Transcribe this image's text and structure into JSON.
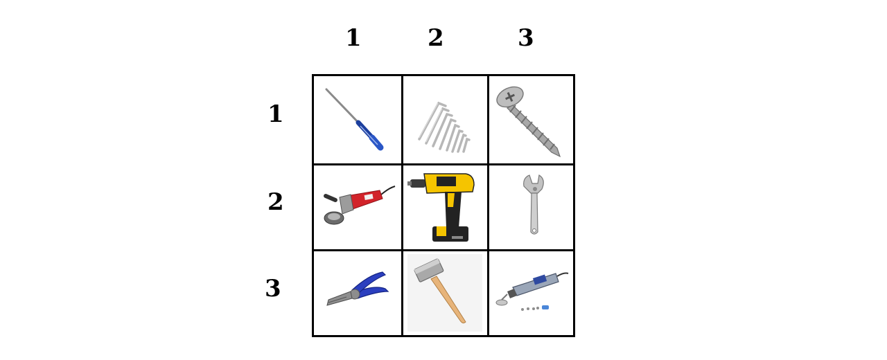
{
  "columns": [
    "1",
    "2",
    "3"
  ],
  "rows": [
    "1",
    "2",
    "3"
  ],
  "cells": [
    {
      "row": 1,
      "col": 1,
      "icon": "screwdriver-icon"
    },
    {
      "row": 1,
      "col": 2,
      "icon": "hex-key-set-icon"
    },
    {
      "row": 1,
      "col": 3,
      "icon": "self-drilling-screw-icon"
    },
    {
      "row": 2,
      "col": 1,
      "icon": "angle-grinder-icon"
    },
    {
      "row": 2,
      "col": 2,
      "icon": "cordless-drill-icon"
    },
    {
      "row": 2,
      "col": 3,
      "icon": "adjustable-wrench-icon"
    },
    {
      "row": 3,
      "col": 1,
      "icon": "pliers-icon"
    },
    {
      "row": 3,
      "col": 2,
      "icon": "sledge-hammer-icon"
    },
    {
      "row": 3,
      "col": 3,
      "icon": "rotary-tool-icon"
    }
  ],
  "colors": {
    "grid": "#000000",
    "drill_yellow": "#f5c400",
    "plier_handle_blue": "#2b3fbf",
    "grinder_red": "#d2232a"
  }
}
